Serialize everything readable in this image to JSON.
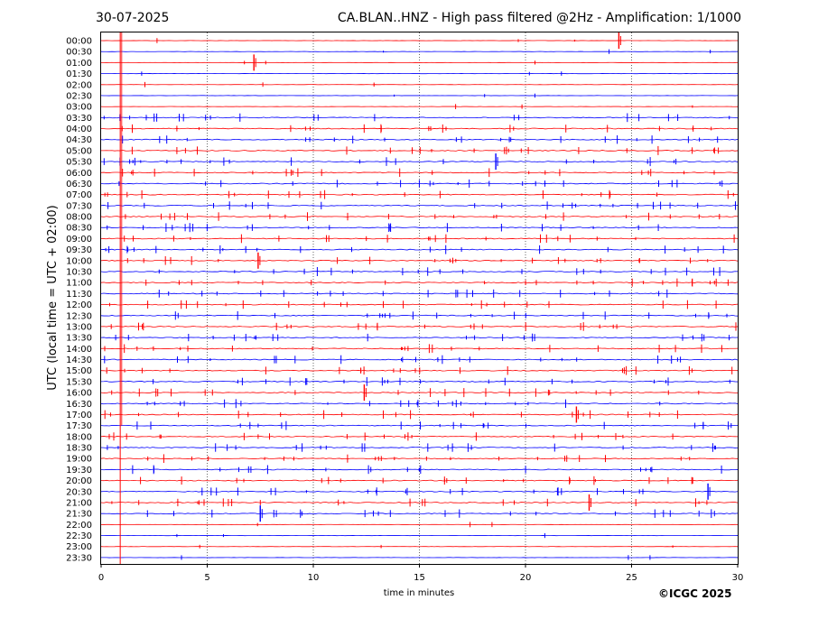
{
  "header": {
    "date": "30-07-2025",
    "title": "CA.BLAN..HNZ - High pass filtered @2Hz - Amplification: 1/1000"
  },
  "credit": "©ICGC 2025",
  "chart_data": {
    "type": "line",
    "title": "CA.BLAN..HNZ - High pass filtered @2Hz - Amplification: 1/1000",
    "xlabel": "time in minutes",
    "ylabel": "UTC (local time = UTC + 02:00)",
    "xlim": [
      0,
      30
    ],
    "xticks": [
      0,
      5,
      10,
      15,
      20,
      25,
      30
    ],
    "x_grid": true,
    "rows": [
      "00:00",
      "00:30",
      "01:00",
      "01:30",
      "02:00",
      "02:30",
      "03:00",
      "03:30",
      "04:00",
      "04:30",
      "05:00",
      "05:30",
      "06:00",
      "06:30",
      "07:00",
      "07:30",
      "08:00",
      "08:30",
      "09:00",
      "09:30",
      "10:00",
      "10:30",
      "11:00",
      "11:30",
      "12:00",
      "12:30",
      "13:00",
      "13:30",
      "14:00",
      "14:30",
      "15:00",
      "15:30",
      "16:00",
      "16:30",
      "17:00",
      "17:30",
      "18:00",
      "18:30",
      "19:00",
      "19:30",
      "20:00",
      "20:30",
      "21:00",
      "21:30",
      "22:00",
      "22:30",
      "23:00",
      "23:30"
    ],
    "trace_colors": [
      "#ff0000",
      "#0000ff"
    ],
    "active_rows": [
      7,
      43
    ],
    "notable_events": [
      {
        "row": "00:00",
        "minute": 24.4
      },
      {
        "row": "01:00",
        "minute": 7.2
      },
      {
        "row": "05:30",
        "minute": 18.6
      },
      {
        "row": "10:00",
        "minute": 7.4
      },
      {
        "row": "16:00",
        "minute": 12.4
      },
      {
        "row": "17:00",
        "minute": 22.4
      },
      {
        "row": "20:30",
        "minute": 28.6
      },
      {
        "row": "21:00",
        "minute": 23.0
      },
      {
        "row": "21:30",
        "minute": 7.5
      }
    ],
    "marker_minute": 0.9
  }
}
